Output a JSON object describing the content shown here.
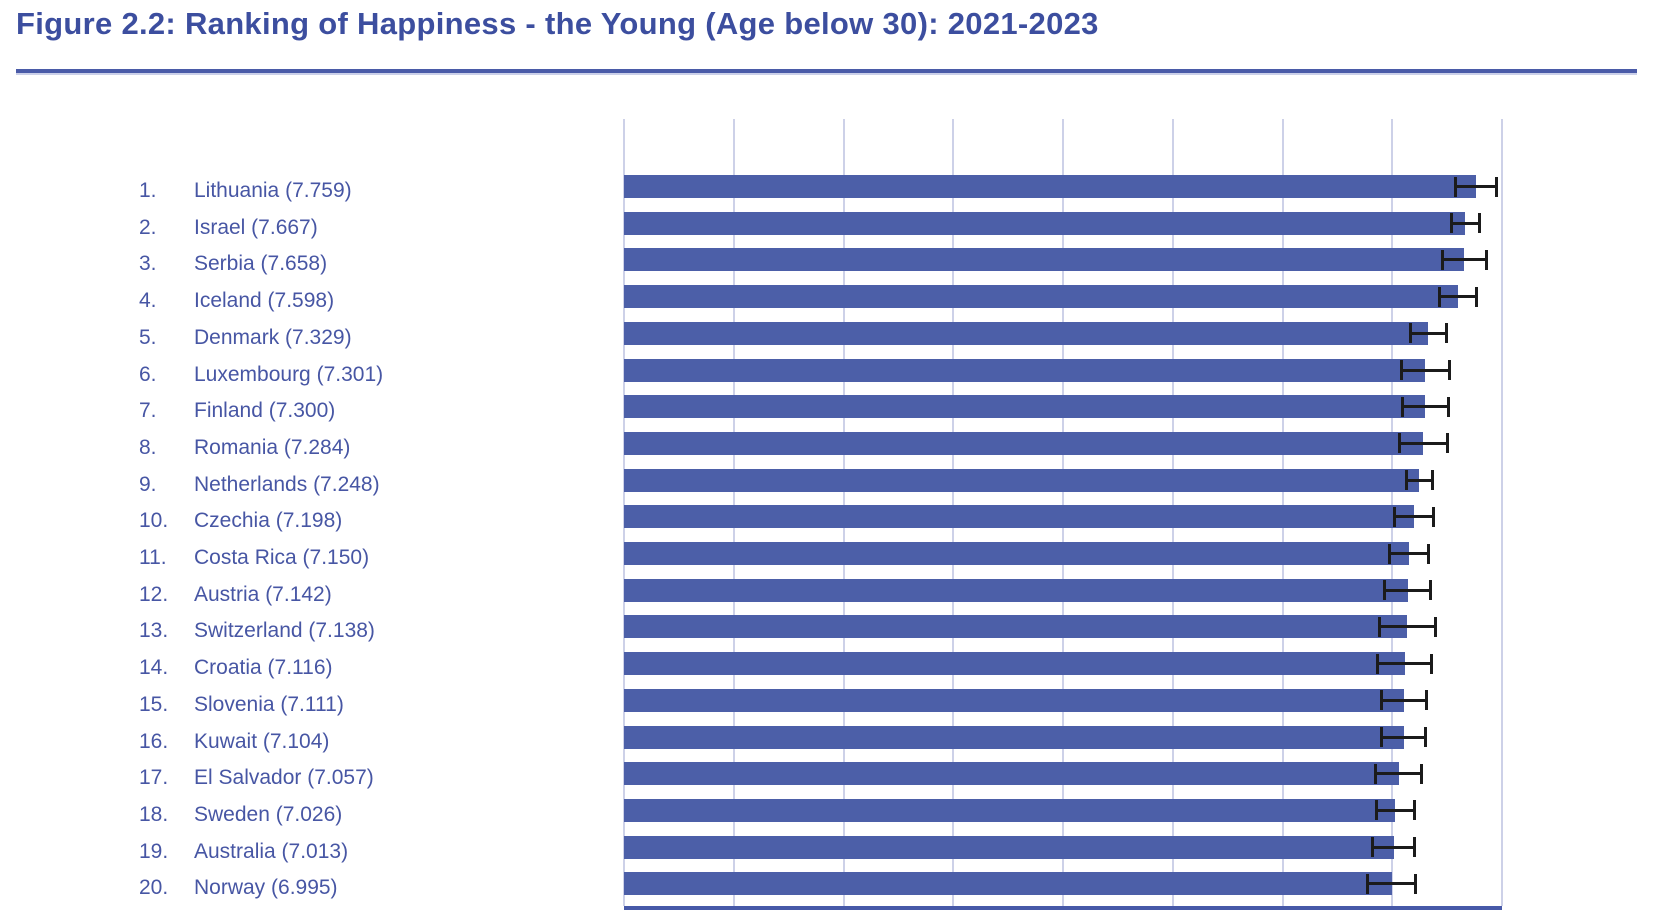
{
  "page": {
    "title": "Figure 2.2: Ranking of Happiness - the Young (Age below 30): 2021-2023"
  },
  "colors": {
    "title": "#3C4E9F",
    "rule": "#4A5BA8",
    "rule_shadow": "#CBD0E9",
    "bar": "#4C5FA8",
    "gridline": "#CDD1E8",
    "axis_line": "#4759A8",
    "error_bar": "#1B1B1B",
    "label_text": "#4756A4",
    "background": "#FFFFFF"
  },
  "chart_data": {
    "type": "bar",
    "orientation": "horizontal",
    "title": "Figure 2.2: Ranking of Happiness - the Young (Age below 30): 2021-2023",
    "xlabel": "",
    "ylabel": "",
    "xlim": [
      0,
      8
    ],
    "x_gridlines": [
      0,
      1,
      2,
      3,
      4,
      5,
      6,
      7,
      8
    ],
    "grid": true,
    "x_tick_labels_visible": false,
    "legend_position": "none",
    "value_label_format": "rank. Country (score)",
    "error_bars": "95% confidence interval, capped both ends",
    "items": [
      {
        "rank": "1.",
        "country": "Lithuania",
        "score": "7.759",
        "ci": 0.187
      },
      {
        "rank": "2.",
        "country": "Israel",
        "score": "7.667",
        "ci": 0.128
      },
      {
        "rank": "3.",
        "country": "Serbia",
        "score": "7.658",
        "ci": 0.2
      },
      {
        "rank": "4.",
        "country": "Iceland",
        "score": "7.598",
        "ci": 0.169
      },
      {
        "rank": "5.",
        "country": "Denmark",
        "score": "7.329",
        "ci": 0.167
      },
      {
        "rank": "6.",
        "country": "Luxembourg",
        "score": "7.301",
        "ci": 0.217
      },
      {
        "rank": "7.",
        "country": "Finland",
        "score": "7.300",
        "ci": 0.21
      },
      {
        "rank": "8.",
        "country": "Romania",
        "score": "7.284",
        "ci": 0.219
      },
      {
        "rank": "9.",
        "country": "Netherlands",
        "score": "7.248",
        "ci": 0.118
      },
      {
        "rank": "10.",
        "country": "Czechia",
        "score": "7.198",
        "ci": 0.178
      },
      {
        "rank": "11.",
        "country": "Costa Rica",
        "score": "7.150",
        "ci": 0.178
      },
      {
        "rank": "12.",
        "country": "Austria",
        "score": "7.142",
        "ci": 0.21
      },
      {
        "rank": "13.",
        "country": "Switzerland",
        "score": "7.138",
        "ci": 0.255
      },
      {
        "rank": "14.",
        "country": "Croatia",
        "score": "7.116",
        "ci": 0.246
      },
      {
        "rank": "15.",
        "country": "Slovenia",
        "score": "7.111",
        "ci": 0.205
      },
      {
        "rank": "16.",
        "country": "Kuwait",
        "score": "7.104",
        "ci": 0.2
      },
      {
        "rank": "17.",
        "country": "El Salvador",
        "score": "7.057",
        "ci": 0.21
      },
      {
        "rank": "18.",
        "country": "Sweden",
        "score": "7.026",
        "ci": 0.173
      },
      {
        "rank": "19.",
        "country": "Australia",
        "score": "7.013",
        "ci": 0.191
      },
      {
        "rank": "20.",
        "country": "Norway",
        "score": "6.995",
        "ci": 0.219
      }
    ]
  }
}
